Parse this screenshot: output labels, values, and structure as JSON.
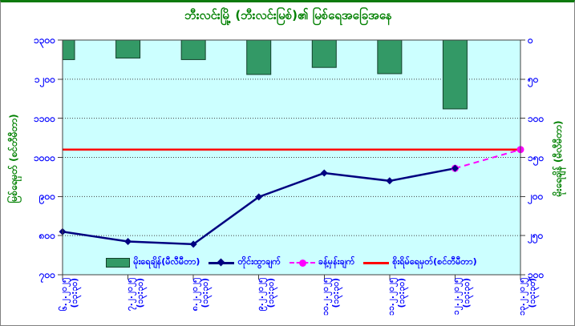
{
  "title": "ဘီးလင်းမြို့ (ဘီးလင်းမြစ်)၏ မြစ်ရေအခြေအနေ",
  "y_left": {
    "title": "မြစ်ရေမှတ် (စင်တီမီတာ)",
    "tick_labels": [
      "၁၃၀၀",
      "၁၂၀၀",
      "၁၁၀၀",
      "၁၀၀၀",
      "၉၀၀",
      "၈၀၀",
      "၇၀၀"
    ]
  },
  "y_right": {
    "title": "မိုးရေချိန် (မီလီမီတာ)",
    "tick_labels": [
      "၀",
      "၅၀",
      "၁၀၀",
      "၁၅၀",
      "၂၀၀",
      "၂၅၀",
      "၃၀၀"
    ]
  },
  "x_labels": [
    {
      "date": "၆.၂.၂၀၂၅",
      "time": "(၁၃:၃၀)"
    },
    {
      "date": "၇.၂.၂၀၂၅",
      "time": "(၁၃:၃၀)"
    },
    {
      "date": "၈.၂.၂၀၂၅",
      "time": "(၁၃:၃၀)"
    },
    {
      "date": "၉.၂.၂၀၂၅",
      "time": "(၁၃:၃၀)"
    },
    {
      "date": "၁၀.၂.၂၀၂၅",
      "time": "(၁၃:၃၀)"
    },
    {
      "date": "၁၁.၂.၂၀၂၅",
      "time": "(၁၃:၃၀)"
    },
    {
      "date": "၁၂.၂.၂၀၂၅",
      "time": "(၁၃:၃၀)"
    },
    {
      "date": "၁၃.၂.၂၀၂၅",
      "time": "(၁၃:၃၀)"
    }
  ],
  "legend": {
    "rainfall": "မိုးရေချိန်(မီလီမီတာ)",
    "measured": "တိုင်းထွာချက်",
    "forecast": "ခန့်မှန်းချက်",
    "danger": "စိုးရိမ်ရေမှတ်(စင်တီမီတာ)"
  },
  "colors": {
    "title_green": "#008000",
    "label_blue": "#0000FF",
    "plot_bg": "#CCFFFF",
    "bar_fill": "#339966",
    "bar_border": "#14402b",
    "measured_line": "#000080",
    "forecast_line": "#FF00FF",
    "danger_line": "#FF0000",
    "grid": "#404040",
    "axis": "#404040"
  },
  "chart_data": {
    "type": "bar",
    "subtype": "combo-bar-line",
    "title": "ဘီးလင်းမြို့ (ဘီးလင်းမြစ်)၏ မြစ်ရေအခြေအနေ",
    "categories": [
      "6.2.2025 (13:30)",
      "7.2.2025 (13:30)",
      "8.2.2025 (13:30)",
      "9.2.2025 (13:30)",
      "10.2.2025 (13:30)",
      "11.2.2025 (13:30)",
      "12.2.2025 (13:30)",
      "13.2.2025 (13:30)"
    ],
    "left_axis": {
      "label": "မြစ်ရေမှတ် (စင်တီမီတာ)",
      "range": [
        700,
        1300
      ],
      "tick_step": 100
    },
    "right_axis": {
      "label": "မိုးရေချိန် (မီလီမီတာ)",
      "range": [
        0,
        300
      ],
      "tick_step": 50,
      "inverted": true,
      "note": "bars hang downward from top"
    },
    "series": [
      {
        "name": "မိုးရေချိန်(မီလီမီတာ)",
        "type": "bar",
        "axis": "right",
        "color": "#339966",
        "values": [
          25,
          23,
          25,
          44,
          35,
          43,
          88,
          null
        ]
      },
      {
        "name": "တိုင်းထွာချက်",
        "type": "line",
        "axis": "left",
        "color": "#000080",
        "marker": "diamond",
        "values": [
          810,
          785,
          778,
          899,
          960,
          940,
          972,
          null
        ]
      },
      {
        "name": "ခန့်မှန်းချက်",
        "type": "line",
        "style": "dashed",
        "axis": "left",
        "color": "#FF00FF",
        "marker": "circle",
        "values": [
          null,
          null,
          null,
          null,
          null,
          null,
          972,
          1020
        ]
      },
      {
        "name": "စိုးရိမ်ရေမှတ်(စင်တီမီတာ)",
        "type": "hline",
        "axis": "left",
        "color": "#FF0000",
        "value": 1020
      }
    ],
    "grid": true,
    "legend_position": "bottom-inside",
    "plot_bg": "#CCFFFF"
  }
}
